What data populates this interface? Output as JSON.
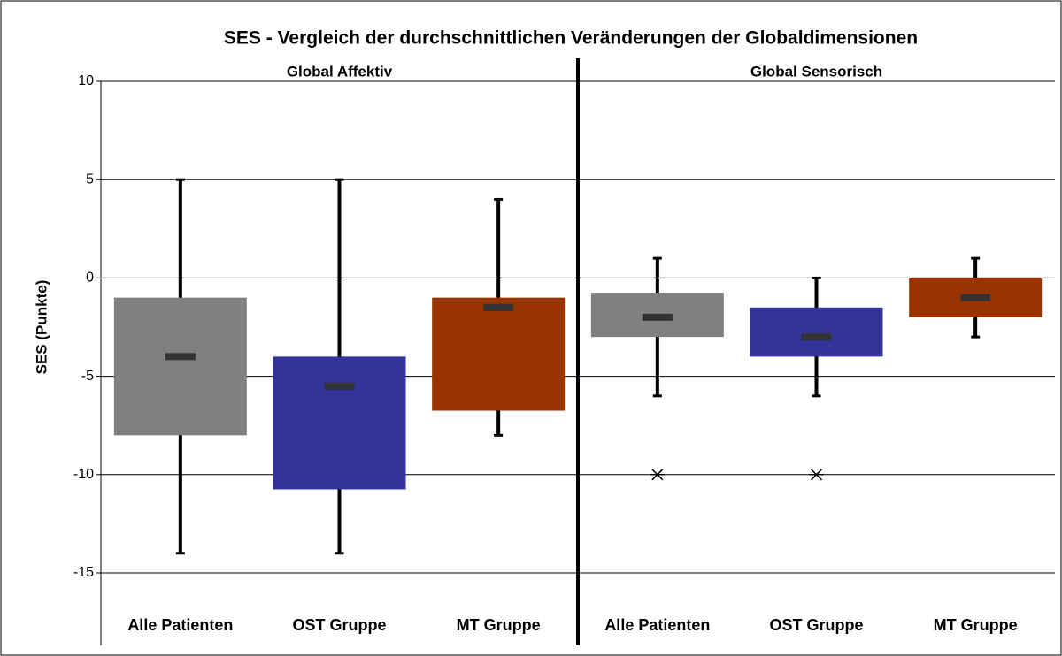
{
  "chart_data": {
    "type": "box",
    "title": "SES - Vergleich der durchschnittlichen Veränderungen der Globaldimensionen",
    "y_label": "SES (Punkte)",
    "ylim": [
      -15,
      10
    ],
    "yticks": [
      -15,
      -10,
      -5,
      0,
      5,
      10
    ],
    "grid": true,
    "groups": [
      {
        "name": "Global Affektiv",
        "boxes": [
          {
            "category": "Alle Patienten",
            "color": "#808080",
            "min": -14,
            "q1": -8,
            "median": -4,
            "q3": -1,
            "max": 5
          },
          {
            "category": "OST Gruppe",
            "color": "#333399",
            "min": -14,
            "q1": -10.75,
            "median": -5.5,
            "q3": -4,
            "max": 5
          },
          {
            "category": "MT Gruppe",
            "color": "#993300",
            "min": -8,
            "q1": -6.75,
            "median": -1.5,
            "q3": -1,
            "max": 4
          }
        ]
      },
      {
        "name": "Global Sensorisch",
        "boxes": [
          {
            "category": "Alle Patienten",
            "color": "#808080",
            "min": -6,
            "q1": -3,
            "median": -2,
            "q3": -0.75,
            "max": 1,
            "outliers": [
              -10
            ]
          },
          {
            "category": "OST Gruppe",
            "color": "#333399",
            "min": -6,
            "q1": -4,
            "median": -3,
            "q3": -1.5,
            "max": 0,
            "outliers": [
              -10
            ]
          },
          {
            "category": "MT Gruppe",
            "color": "#993300",
            "min": -3,
            "q1": -2,
            "median": -1,
            "q3": 0,
            "max": 1
          }
        ]
      }
    ]
  }
}
